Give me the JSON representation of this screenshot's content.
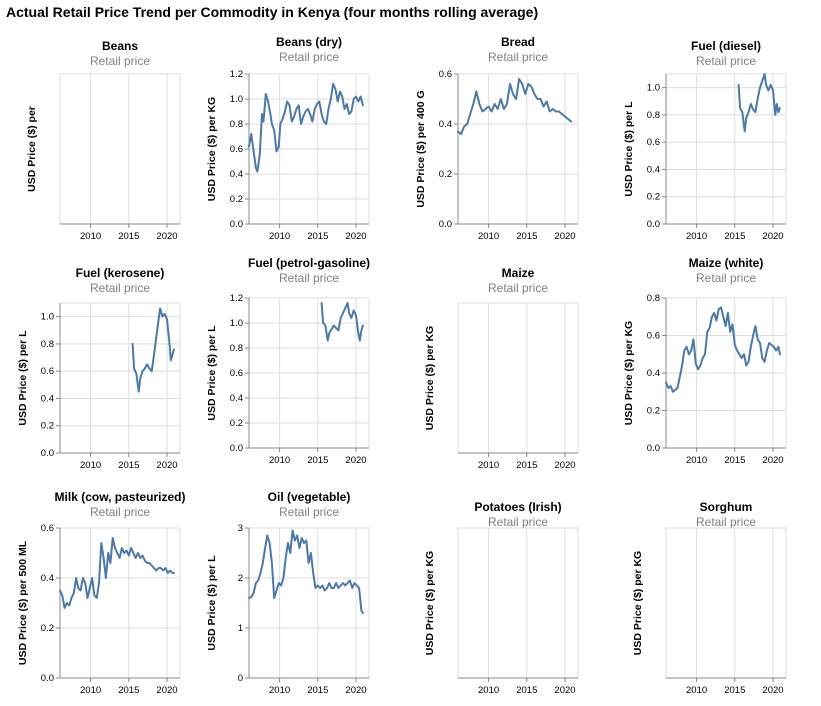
{
  "title": "Actual Retail Price Trend per Commodity in Kenya (four months rolling average)",
  "chart_data": [
    {
      "type": "line",
      "title": "Beans",
      "subtitle": "Retail price",
      "ylabel": "USD Price ($) per",
      "xticks": [
        2010,
        2015,
        2020
      ],
      "xlim": [
        2006,
        2021.7
      ],
      "yticks": [],
      "ylim": null,
      "series": []
    },
    {
      "type": "line",
      "title": "Beans (dry)",
      "subtitle": "Retail price",
      "ylabel": "USD Price ($) per KG",
      "xticks": [
        2010,
        2015,
        2020
      ],
      "xlim": [
        2006,
        2021.7
      ],
      "yticks": [
        0.0,
        0.2,
        0.4,
        0.6,
        0.8,
        1.0,
        1.2
      ],
      "ylim": [
        0,
        1.2
      ],
      "series": [
        {
          "name": "Retail price",
          "x": [
            2006.0,
            2006.3,
            2006.6,
            2006.9,
            2007.1,
            2007.4,
            2007.7,
            2007.9,
            2008.2,
            2008.5,
            2008.8,
            2009.0,
            2009.3,
            2009.6,
            2009.9,
            2010.1,
            2010.4,
            2010.7,
            2011.0,
            2011.3,
            2011.6,
            2011.9,
            2012.2,
            2012.5,
            2012.8,
            2013.1,
            2013.4,
            2013.7,
            2014.0,
            2014.3,
            2014.6,
            2014.9,
            2015.2,
            2015.5,
            2015.8,
            2016.1,
            2016.4,
            2016.7,
            2017.0,
            2017.3,
            2017.6,
            2017.9,
            2018.2,
            2018.5,
            2018.8,
            2019.1,
            2019.4,
            2019.7,
            2020.0,
            2020.3,
            2020.6,
            2020.9
          ],
          "y": [
            0.62,
            0.72,
            0.58,
            0.45,
            0.42,
            0.55,
            0.88,
            0.82,
            1.04,
            0.98,
            0.88,
            0.8,
            0.75,
            0.58,
            0.62,
            0.8,
            0.84,
            0.9,
            0.98,
            0.95,
            0.82,
            0.86,
            0.92,
            0.95,
            0.8,
            0.86,
            0.9,
            0.92,
            0.88,
            0.82,
            0.92,
            0.96,
            0.98,
            0.88,
            0.82,
            0.8,
            0.92,
            1.0,
            1.12,
            1.08,
            0.98,
            1.06,
            1.02,
            0.92,
            0.96,
            0.88,
            0.9,
            1.0,
            1.02,
            0.98,
            1.02,
            0.95
          ]
        }
      ]
    },
    {
      "type": "line",
      "title": "Bread",
      "subtitle": "Retail price",
      "ylabel": "USD Price ($) per 400 G",
      "xticks": [
        2010,
        2015,
        2020
      ],
      "xlim": [
        2006,
        2021.7
      ],
      "yticks": [
        0.0,
        0.2,
        0.4,
        0.6
      ],
      "ylim": [
        0,
        0.6
      ],
      "series": [
        {
          "name": "Retail price",
          "x": [
            2006.0,
            2006.4,
            2006.8,
            2007.2,
            2007.6,
            2008.0,
            2008.4,
            2008.8,
            2009.2,
            2009.6,
            2010.0,
            2010.4,
            2010.8,
            2011.2,
            2011.6,
            2012.0,
            2012.4,
            2012.8,
            2013.2,
            2013.6,
            2014.0,
            2014.4,
            2014.8,
            2015.2,
            2015.6,
            2016.0,
            2016.4,
            2016.8,
            2017.2,
            2017.6,
            2018.0,
            2018.4,
            2018.8,
            2019.2,
            2019.6,
            2020.0,
            2020.4,
            2020.8
          ],
          "y": [
            0.37,
            0.36,
            0.39,
            0.4,
            0.44,
            0.48,
            0.53,
            0.48,
            0.45,
            0.46,
            0.47,
            0.45,
            0.48,
            0.46,
            0.5,
            0.46,
            0.48,
            0.56,
            0.52,
            0.5,
            0.58,
            0.56,
            0.52,
            0.56,
            0.55,
            0.52,
            0.5,
            0.5,
            0.47,
            0.49,
            0.45,
            0.46,
            0.45,
            0.45,
            0.44,
            0.43,
            0.42,
            0.41
          ]
        }
      ]
    },
    {
      "type": "line",
      "title": "Fuel (diesel)",
      "subtitle": "Retail price",
      "ylabel": "USD Price ($) per L",
      "xticks": [
        2010,
        2015,
        2020
      ],
      "xlim": [
        2006,
        2021.7
      ],
      "yticks": [
        0.0,
        0.2,
        0.4,
        0.6,
        0.8,
        1.0
      ],
      "ylim": [
        0,
        1.1
      ],
      "series": [
        {
          "name": "Retail price",
          "x": [
            2015.5,
            2015.7,
            2016.0,
            2016.3,
            2016.5,
            2016.8,
            2017.1,
            2017.4,
            2017.7,
            2018.0,
            2018.3,
            2018.6,
            2018.9,
            2019.1,
            2019.4,
            2019.7,
            2020.0,
            2020.3,
            2020.5,
            2020.7,
            2020.9
          ],
          "y": [
            1.02,
            0.85,
            0.82,
            0.68,
            0.78,
            0.82,
            0.88,
            0.84,
            0.82,
            0.92,
            1.0,
            1.05,
            1.1,
            1.02,
            0.98,
            1.02,
            0.98,
            0.8,
            0.88,
            0.82,
            0.85
          ]
        }
      ]
    },
    {
      "type": "line",
      "title": "Fuel (kerosene)",
      "subtitle": "Retail price",
      "ylabel": "USD Price ($) per L",
      "xticks": [
        2010,
        2015,
        2020
      ],
      "xlim": [
        2006,
        2021.7
      ],
      "yticks": [
        0.0,
        0.2,
        0.4,
        0.6,
        0.8,
        1.0
      ],
      "ylim": [
        0,
        1.1
      ],
      "series": [
        {
          "name": "Retail price",
          "x": [
            2015.5,
            2015.7,
            2016.0,
            2016.3,
            2016.5,
            2016.8,
            2017.1,
            2017.4,
            2017.7,
            2018.0,
            2018.3,
            2018.6,
            2018.9,
            2019.1,
            2019.4,
            2019.7,
            2020.0,
            2020.3,
            2020.5,
            2020.7,
            2020.9
          ],
          "y": [
            0.8,
            0.62,
            0.58,
            0.45,
            0.55,
            0.6,
            0.62,
            0.65,
            0.62,
            0.6,
            0.72,
            0.85,
            0.98,
            1.06,
            1.0,
            1.02,
            0.98,
            0.82,
            0.68,
            0.72,
            0.76
          ]
        }
      ]
    },
    {
      "type": "line",
      "title": "Fuel (petrol-gasoline)",
      "subtitle": "Retail price",
      "ylabel": "USD Price ($) per L",
      "xticks": [
        2010,
        2015,
        2020
      ],
      "xlim": [
        2006,
        2021.7
      ],
      "yticks": [
        0.0,
        0.2,
        0.4,
        0.6,
        0.8,
        1.0,
        1.2
      ],
      "ylim": [
        0,
        1.2
      ],
      "series": [
        {
          "name": "Retail price",
          "x": [
            2015.5,
            2015.7,
            2016.0,
            2016.3,
            2016.5,
            2016.8,
            2017.1,
            2017.4,
            2017.7,
            2018.0,
            2018.3,
            2018.6,
            2018.9,
            2019.1,
            2019.4,
            2019.7,
            2020.0,
            2020.3,
            2020.5,
            2020.7,
            2020.9
          ],
          "y": [
            1.16,
            1.0,
            0.98,
            0.86,
            0.92,
            0.95,
            0.98,
            0.96,
            0.94,
            1.04,
            1.08,
            1.12,
            1.16,
            1.08,
            1.04,
            1.1,
            1.06,
            0.92,
            0.86,
            0.94,
            0.98
          ]
        }
      ]
    },
    {
      "type": "line",
      "title": "Maize",
      "subtitle": "Retail price",
      "ylabel": "USD Price ($) per KG",
      "xticks": [
        2010,
        2015,
        2020
      ],
      "xlim": [
        2006,
        2021.7
      ],
      "yticks": [],
      "ylim": null,
      "series": []
    },
    {
      "type": "line",
      "title": "Maize (white)",
      "subtitle": "Retail price",
      "ylabel": "USD Price ($) per KG",
      "xticks": [
        2010,
        2015,
        2020
      ],
      "xlim": [
        2006,
        2021.7
      ],
      "yticks": [
        0.0,
        0.2,
        0.4,
        0.6,
        0.8
      ],
      "ylim": [
        0,
        0.8
      ],
      "series": [
        {
          "name": "Retail price",
          "x": [
            2006.0,
            2006.3,
            2006.6,
            2006.9,
            2007.2,
            2007.5,
            2007.8,
            2008.1,
            2008.4,
            2008.7,
            2009.0,
            2009.3,
            2009.6,
            2009.9,
            2010.2,
            2010.5,
            2010.8,
            2011.1,
            2011.4,
            2011.7,
            2012.0,
            2012.3,
            2012.6,
            2012.9,
            2013.2,
            2013.5,
            2013.8,
            2014.1,
            2014.4,
            2014.7,
            2015.0,
            2015.3,
            2015.6,
            2015.9,
            2016.2,
            2016.5,
            2016.8,
            2017.1,
            2017.4,
            2017.7,
            2018.0,
            2018.3,
            2018.6,
            2018.9,
            2019.2,
            2019.5,
            2019.8,
            2020.1,
            2020.4,
            2020.7,
            2020.9
          ],
          "y": [
            0.35,
            0.32,
            0.33,
            0.3,
            0.31,
            0.32,
            0.38,
            0.44,
            0.52,
            0.54,
            0.5,
            0.52,
            0.58,
            0.45,
            0.42,
            0.44,
            0.48,
            0.5,
            0.62,
            0.64,
            0.7,
            0.72,
            0.68,
            0.74,
            0.75,
            0.7,
            0.65,
            0.72,
            0.62,
            0.66,
            0.55,
            0.52,
            0.5,
            0.48,
            0.5,
            0.44,
            0.46,
            0.54,
            0.6,
            0.65,
            0.58,
            0.56,
            0.48,
            0.46,
            0.52,
            0.56,
            0.55,
            0.54,
            0.52,
            0.54,
            0.5
          ]
        }
      ]
    },
    {
      "type": "line",
      "title": "Milk (cow, pasteurized)",
      "subtitle": "Retail price",
      "ylabel": "USD Price ($) per 500 ML",
      "xticks": [
        2010,
        2015,
        2020
      ],
      "xlim": [
        2006,
        2021.7
      ],
      "yticks": [
        0.0,
        0.2,
        0.4,
        0.6
      ],
      "ylim": [
        0,
        0.6
      ],
      "series": [
        {
          "name": "Retail price",
          "x": [
            2006.0,
            2006.3,
            2006.6,
            2006.9,
            2007.2,
            2007.5,
            2007.8,
            2008.1,
            2008.4,
            2008.7,
            2009.0,
            2009.3,
            2009.6,
            2009.9,
            2010.2,
            2010.5,
            2010.8,
            2011.1,
            2011.4,
            2011.7,
            2012.0,
            2012.3,
            2012.6,
            2012.9,
            2013.2,
            2013.5,
            2013.8,
            2014.1,
            2014.4,
            2014.7,
            2015.0,
            2015.3,
            2015.6,
            2015.9,
            2016.2,
            2016.5,
            2016.8,
            2017.1,
            2017.4,
            2017.7,
            2018.0,
            2018.3,
            2018.6,
            2018.9,
            2019.2,
            2019.5,
            2019.8,
            2020.1,
            2020.4,
            2020.7,
            2020.9
          ],
          "y": [
            0.35,
            0.33,
            0.28,
            0.3,
            0.29,
            0.32,
            0.34,
            0.4,
            0.36,
            0.35,
            0.4,
            0.38,
            0.32,
            0.36,
            0.4,
            0.33,
            0.32,
            0.38,
            0.54,
            0.48,
            0.4,
            0.5,
            0.46,
            0.56,
            0.52,
            0.5,
            0.48,
            0.52,
            0.5,
            0.51,
            0.49,
            0.52,
            0.5,
            0.48,
            0.5,
            0.48,
            0.49,
            0.47,
            0.46,
            0.46,
            0.45,
            0.44,
            0.43,
            0.44,
            0.44,
            0.43,
            0.44,
            0.42,
            0.43,
            0.42,
            0.42
          ]
        }
      ]
    },
    {
      "type": "line",
      "title": "Oil (vegetable)",
      "subtitle": "Retail price",
      "ylabel": "USD Price ($) per L",
      "xticks": [
        2010,
        2015,
        2020
      ],
      "xlim": [
        2006,
        2021.7
      ],
      "yticks": [
        0,
        1,
        2,
        3
      ],
      "ylim": [
        0,
        3
      ],
      "series": [
        {
          "name": "Retail price",
          "x": [
            2006.0,
            2006.3,
            2006.6,
            2006.9,
            2007.2,
            2007.5,
            2007.8,
            2008.1,
            2008.4,
            2008.7,
            2009.0,
            2009.3,
            2009.6,
            2009.9,
            2010.2,
            2010.5,
            2010.8,
            2011.1,
            2011.4,
            2011.7,
            2012.0,
            2012.3,
            2012.6,
            2012.9,
            2013.2,
            2013.5,
            2013.8,
            2014.1,
            2014.4,
            2014.7,
            2015.0,
            2015.3,
            2015.6,
            2015.9,
            2016.2,
            2016.5,
            2016.8,
            2017.1,
            2017.4,
            2017.7,
            2018.0,
            2018.3,
            2018.6,
            2018.9,
            2019.2,
            2019.5,
            2019.8,
            2020.1,
            2020.4,
            2020.7,
            2020.9
          ],
          "y": [
            1.6,
            1.62,
            1.7,
            1.9,
            1.95,
            2.1,
            2.3,
            2.6,
            2.85,
            2.7,
            2.3,
            1.6,
            1.75,
            1.9,
            1.85,
            2.0,
            2.4,
            2.7,
            2.5,
            2.95,
            2.75,
            2.85,
            2.6,
            2.8,
            2.7,
            2.75,
            2.3,
            2.5,
            2.1,
            1.8,
            1.85,
            1.8,
            1.85,
            1.75,
            1.8,
            1.9,
            1.8,
            1.8,
            1.9,
            1.8,
            1.85,
            1.9,
            1.85,
            1.9,
            1.95,
            1.8,
            1.9,
            1.85,
            1.8,
            1.35,
            1.3
          ]
        }
      ]
    },
    {
      "type": "line",
      "title": "Potatoes (Irish)",
      "subtitle": "Retail price",
      "ylabel": "USD Price ($) per KG",
      "xticks": [
        2010,
        2015,
        2020
      ],
      "xlim": [
        2006,
        2021.7
      ],
      "yticks": [],
      "ylim": null,
      "series": []
    },
    {
      "type": "line",
      "title": "Sorghum",
      "subtitle": "Retail price",
      "ylabel": "USD Price ($) per KG",
      "xticks": [
        2010,
        2015,
        2020
      ],
      "xlim": [
        2006,
        2021.7
      ],
      "yticks": [],
      "ylim": null,
      "series": []
    }
  ],
  "colors": {
    "line": "#4c78a8",
    "grid": "#dddddd",
    "axis": "#888888",
    "subtitle": "#808080"
  }
}
